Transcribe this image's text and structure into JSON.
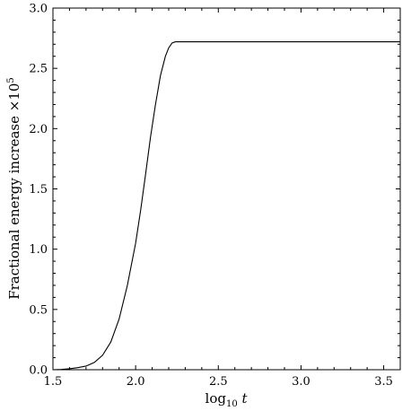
{
  "chart_data": {
    "type": "line",
    "xlabel": {
      "main": "log",
      "sub": "10",
      "var": " t"
    },
    "ylabel": {
      "main": "Fractional energy increase ×10",
      "sup": "5"
    },
    "xlim": [
      1.5,
      3.6
    ],
    "ylim": [
      0.0,
      3.0
    ],
    "x_ticks": [
      1.5,
      2.0,
      2.5,
      3.0,
      3.5
    ],
    "x_tick_labels": [
      "1.5",
      "2.0",
      "2.5",
      "3.0",
      "3.5"
    ],
    "x_minor_step": 0.1,
    "y_ticks": [
      0.0,
      0.5,
      1.0,
      1.5,
      2.0,
      2.5,
      3.0
    ],
    "y_tick_labels": [
      "0.0",
      "0.5",
      "1.0",
      "1.5",
      "2.0",
      "2.5",
      "3.0"
    ],
    "y_minor_step": 0.1,
    "grid": false,
    "series": [
      {
        "color": "#000000",
        "x": [
          1.5,
          1.55,
          1.6,
          1.65,
          1.7,
          1.75,
          1.8,
          1.85,
          1.9,
          1.95,
          2.0,
          2.03,
          2.06,
          2.09,
          2.12,
          2.15,
          2.18,
          2.2,
          2.22,
          2.24,
          2.26,
          2.28,
          2.3,
          2.4,
          2.6,
          2.8,
          3.0,
          3.2,
          3.4,
          3.6
        ],
        "y": [
          0.0,
          0.002,
          0.008,
          0.017,
          0.03,
          0.06,
          0.12,
          0.23,
          0.42,
          0.7,
          1.05,
          1.32,
          1.62,
          1.93,
          2.2,
          2.44,
          2.6,
          2.67,
          2.71,
          2.72,
          2.72,
          2.72,
          2.72,
          2.72,
          2.72,
          2.72,
          2.72,
          2.72,
          2.72,
          2.72
        ]
      }
    ]
  }
}
